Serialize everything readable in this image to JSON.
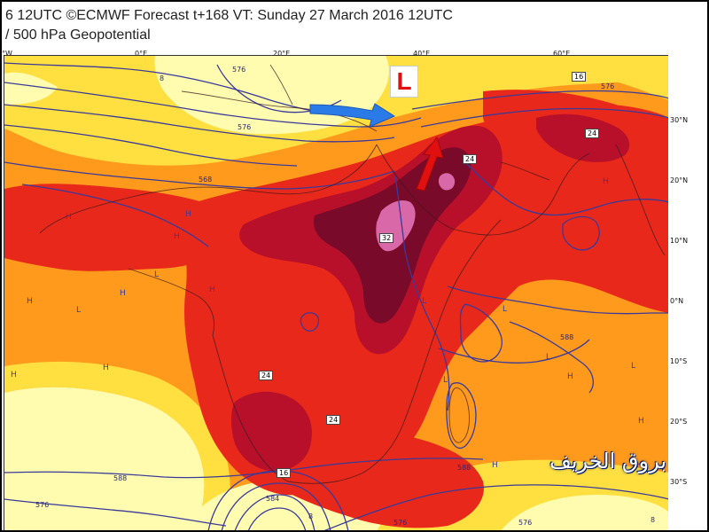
{
  "header": {
    "title_line1": "6 12UTC ©ECMWF Forecast t+168 VT: Sunday 27 March 2016 12UTC",
    "title_line2": "/ 500 hPa Geopotential"
  },
  "axes": {
    "longitude_labels": [
      "°W",
      "0°E",
      "20°E",
      "40°E",
      "60°E"
    ],
    "latitude_labels": [
      "30°N",
      "20°N",
      "10°N",
      "0°N",
      "10°S",
      "20°S",
      "30°S"
    ]
  },
  "contour_labels": [
    "576",
    "576",
    "568",
    "576",
    "588",
    "576",
    "584",
    "576",
    "588",
    "588",
    "576"
  ],
  "shading_labels": [
    "16",
    "24",
    "24",
    "32",
    "24",
    "24",
    "16",
    "8",
    "8",
    "8"
  ],
  "pressure_markers": {
    "big_low": "L",
    "highs": [
      "H",
      "H",
      "H",
      "H",
      "H",
      "H",
      "H",
      "H",
      "H",
      "H",
      "H",
      "H",
      "H"
    ],
    "lows": [
      "L",
      "L",
      "L",
      "L",
      "L",
      "L",
      "L"
    ]
  },
  "watermark": "بروق الخريف",
  "colors": {
    "pale_yellow": "#fffcb0",
    "yellow": "#ffe040",
    "orange": "#ff9a1c",
    "deep_orange": "#ff6a10",
    "red": "#e8281a",
    "dark_red": "#b8102a",
    "maroon": "#7a0a2a",
    "pink": "#d868a8",
    "contour": "#3a3a9a",
    "arrow": "#2a7ae8",
    "low_marker": "#e01010"
  }
}
